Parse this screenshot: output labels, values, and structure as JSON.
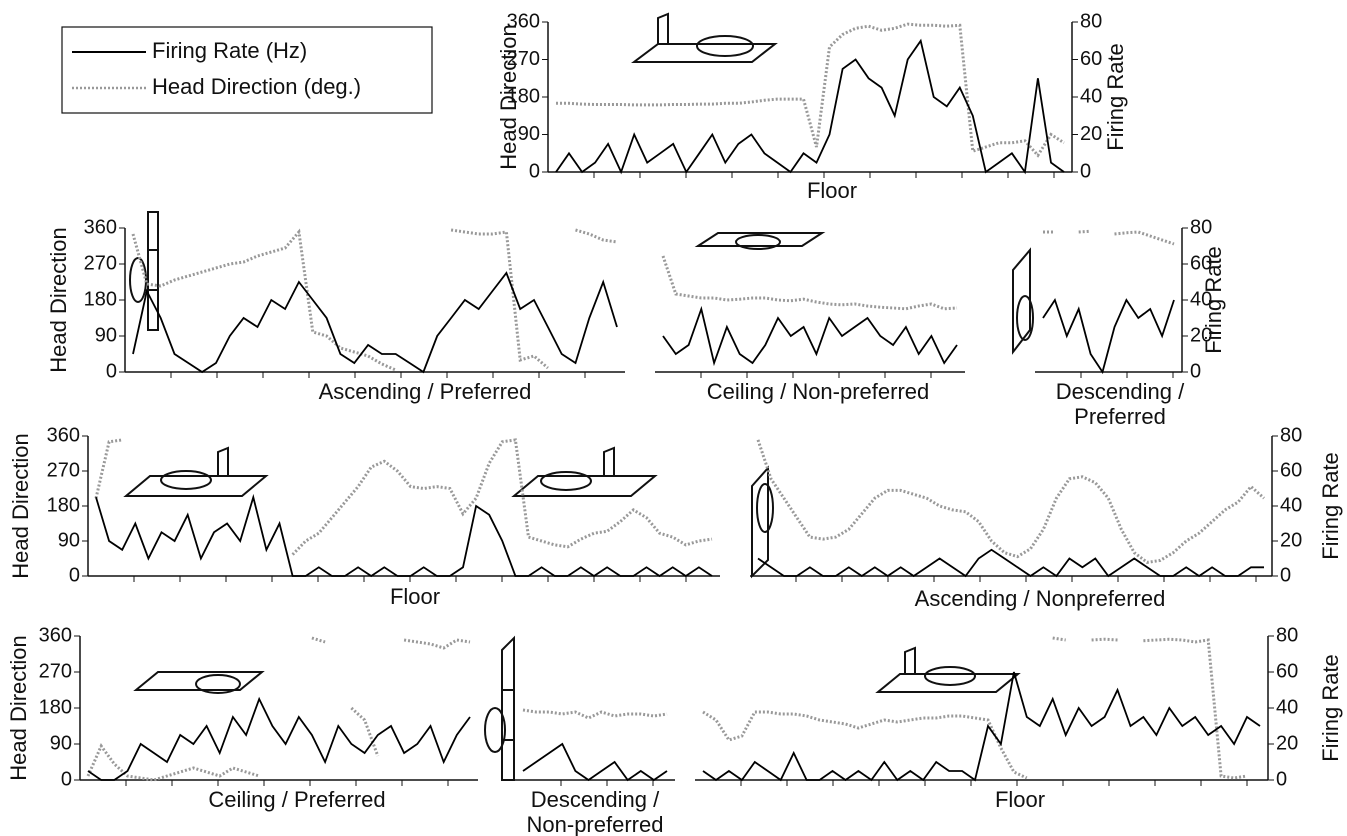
{
  "chart_data": [
    {
      "type": "line",
      "xlabel": "Floor",
      "ylabel": "Head Direction",
      "y2label": "Firing Rate",
      "ylim": [
        0,
        360
      ],
      "yticks": [
        0,
        90,
        180,
        270,
        360
      ],
      "y2lim": [
        0,
        80
      ],
      "y2ticks": [
        0,
        20,
        40,
        60,
        80
      ],
      "series": [
        {
          "name": "Firing Rate (Hz)",
          "color": "#000000",
          "axis": "y2",
          "values": [
            0,
            10,
            0,
            5,
            15,
            0,
            20,
            5,
            10,
            15,
            0,
            10,
            20,
            5,
            15,
            20,
            10,
            5,
            0,
            10,
            5,
            20,
            55,
            60,
            50,
            45,
            30,
            60,
            70,
            40,
            35,
            45,
            30,
            0,
            5,
            10,
            0,
            50,
            5,
            0
          ]
        },
        {
          "name": "Head Direction (deg.)",
          "color": "#999999",
          "values": [
            165,
            165,
            163,
            162,
            162,
            162,
            161,
            161,
            161,
            162,
            162,
            163,
            163,
            165,
            165,
            168,
            172,
            175,
            175,
            175,
            60,
            300,
            330,
            345,
            350,
            340,
            345,
            355,
            352,
            352,
            350,
            352,
            50,
            60,
            70,
            70,
            75,
            40,
            90,
            70
          ]
        }
      ]
    },
    {
      "type": "line",
      "xlabel": "Ascending / Preferred",
      "ylabel": "Head Direction",
      "ylim": [
        0,
        360
      ],
      "yticks": [
        0,
        90,
        180,
        270,
        360
      ],
      "y2lim": [
        0,
        80
      ],
      "series": [
        {
          "color": "#000000",
          "axis": "y2",
          "values": [
            10,
            45,
            30,
            10,
            5,
            0,
            5,
            20,
            30,
            25,
            40,
            35,
            50,
            40,
            30,
            10,
            5,
            15,
            10,
            10,
            5,
            0,
            20,
            30,
            40,
            35,
            45,
            55,
            35,
            40,
            25,
            10,
            5,
            30,
            50,
            25
          ]
        },
        {
          "color": "#999999",
          "values": [
            345,
            220,
            215,
            230,
            240,
            250,
            260,
            270,
            275,
            290,
            300,
            310,
            350,
            100,
            90,
            60,
            50,
            40,
            20,
            5,
            null,
            null,
            null,
            355,
            350,
            345,
            345,
            350,
            30,
            40,
            10,
            null,
            355,
            345,
            330,
            325
          ]
        }
      ]
    },
    {
      "type": "line",
      "xlabel": "Ceiling / Non-preferred",
      "ylim": [
        0,
        360
      ],
      "y2lim": [
        0,
        80
      ],
      "series": [
        {
          "color": "#000000",
          "axis": "y2",
          "values": [
            20,
            10,
            15,
            35,
            5,
            25,
            10,
            5,
            15,
            30,
            20,
            25,
            10,
            30,
            20,
            25,
            30,
            20,
            15,
            25,
            10,
            20,
            5,
            15
          ]
        },
        {
          "color": "#999999",
          "values": [
            290,
            195,
            190,
            185,
            185,
            180,
            182,
            185,
            185,
            180,
            178,
            182,
            175,
            170,
            168,
            170,
            165,
            162,
            160,
            158,
            165,
            170,
            158,
            160
          ]
        }
      ]
    },
    {
      "type": "line",
      "xlabel": [
        "Descending /",
        "Preferred"
      ],
      "y2label": "Firing Rate",
      "ylim": [
        0,
        360
      ],
      "y2lim": [
        0,
        80
      ],
      "y2ticks": [
        0,
        20,
        40,
        60,
        80
      ],
      "series": [
        {
          "color": "#000000",
          "axis": "y2",
          "values": [
            30,
            40,
            20,
            35,
            10,
            0,
            25,
            40,
            30,
            35,
            20,
            40
          ]
        },
        {
          "color": "#999999",
          "values": [
            350,
            350,
            null,
            350,
            352,
            null,
            345,
            348,
            350,
            340,
            330,
            320
          ]
        }
      ]
    },
    {
      "type": "line",
      "xlabel": "Floor",
      "ylabel": "Head Direction",
      "ylim": [
        0,
        360
      ],
      "yticks": [
        0,
        90,
        180,
        270,
        360
      ],
      "y2lim": [
        0,
        80
      ],
      "series": [
        {
          "color": "#000000",
          "axis": "y2",
          "values": [
            45,
            20,
            15,
            30,
            10,
            25,
            20,
            35,
            10,
            25,
            30,
            20,
            45,
            15,
            30,
            0,
            0,
            5,
            0,
            0,
            5,
            0,
            5,
            0,
            0,
            5,
            0,
            0,
            5,
            40,
            35,
            20,
            0,
            0,
            5,
            0,
            0,
            5,
            0,
            5,
            0,
            0,
            5,
            0,
            5,
            0,
            5,
            0
          ]
        },
        {
          "color": "#999999",
          "values": [
            200,
            345,
            350,
            null,
            null,
            350,
            null,
            355,
            null,
            350,
            null,
            null,
            340,
            null,
            null,
            55,
            90,
            110,
            150,
            190,
            230,
            280,
            295,
            270,
            230,
            225,
            230,
            225,
            160,
            200,
            290,
            345,
            350,
            100,
            90,
            80,
            75,
            95,
            110,
            115,
            140,
            170,
            150,
            110,
            100,
            80,
            90,
            95
          ]
        }
      ]
    },
    {
      "type": "line",
      "xlabel": "Ascending / Nonpreferred",
      "y2label": "Firing Rate",
      "ylim": [
        0,
        360
      ],
      "y2lim": [
        0,
        80
      ],
      "y2ticks": [
        0,
        20,
        40,
        60,
        80
      ],
      "series": [
        {
          "color": "#000000",
          "axis": "y2",
          "values": [
            10,
            5,
            0,
            0,
            5,
            0,
            0,
            5,
            0,
            5,
            0,
            5,
            0,
            5,
            10,
            5,
            0,
            10,
            15,
            10,
            5,
            0,
            5,
            0,
            10,
            5,
            10,
            0,
            5,
            10,
            5,
            0,
            0,
            5,
            0,
            5,
            0,
            0,
            5,
            5
          ]
        },
        {
          "color": "#999999",
          "values": [
            350,
            250,
            200,
            150,
            100,
            95,
            100,
            120,
            160,
            200,
            220,
            220,
            210,
            200,
            180,
            170,
            165,
            140,
            90,
            60,
            50,
            70,
            120,
            200,
            250,
            255,
            240,
            200,
            120,
            60,
            35,
            40,
            60,
            90,
            110,
            140,
            170,
            190,
            230,
            200
          ]
        }
      ]
    },
    {
      "type": "line",
      "xlabel": "Ceiling / Preferred",
      "ylabel": "Head Direction",
      "ylim": [
        0,
        360
      ],
      "yticks": [
        0,
        90,
        180,
        270,
        360
      ],
      "y2lim": [
        0,
        80
      ],
      "series": [
        {
          "color": "#000000",
          "axis": "y2",
          "values": [
            5,
            0,
            0,
            5,
            20,
            15,
            10,
            25,
            20,
            30,
            15,
            35,
            25,
            45,
            30,
            20,
            35,
            25,
            10,
            30,
            20,
            15,
            25,
            30,
            15,
            20,
            30,
            10,
            25,
            35
          ]
        },
        {
          "color": "#999999",
          "values": [
            10,
            85,
            40,
            10,
            5,
            0,
            10,
            20,
            30,
            20,
            10,
            30,
            20,
            10,
            null,
            null,
            null,
            355,
            345,
            null,
            180,
            150,
            60,
            null,
            350,
            345,
            340,
            330,
            350,
            345
          ]
        }
      ]
    },
    {
      "type": "line",
      "xlabel": [
        "Descending /",
        "Non-preferred"
      ],
      "ylim": [
        0,
        360
      ],
      "y2lim": [
        0,
        80
      ],
      "series": [
        {
          "color": "#000000",
          "axis": "y2",
          "values": [
            5,
            10,
            15,
            20,
            5,
            0,
            5,
            10,
            0,
            5,
            0,
            5
          ]
        },
        {
          "color": "#999999",
          "values": [
            175,
            170,
            170,
            165,
            170,
            155,
            170,
            160,
            165,
            165,
            160,
            165
          ]
        }
      ]
    },
    {
      "type": "line",
      "xlabel": "Floor",
      "y2label": "Firing Rate",
      "ylim": [
        0,
        360
      ],
      "y2lim": [
        0,
        80
      ],
      "y2ticks": [
        0,
        20,
        40,
        60,
        80
      ],
      "series": [
        {
          "color": "#000000",
          "axis": "y2",
          "values": [
            5,
            0,
            5,
            0,
            10,
            5,
            0,
            15,
            0,
            0,
            5,
            0,
            5,
            0,
            10,
            0,
            5,
            0,
            10,
            5,
            5,
            0,
            30,
            20,
            60,
            35,
            30,
            45,
            25,
            40,
            30,
            35,
            50,
            30,
            35,
            25,
            40,
            30,
            35,
            25,
            30,
            20,
            35,
            30
          ]
        },
        {
          "color": "#999999",
          "values": [
            170,
            150,
            100,
            110,
            170,
            170,
            165,
            165,
            160,
            150,
            145,
            140,
            130,
            140,
            150,
            145,
            150,
            155,
            155,
            160,
            160,
            155,
            150,
            80,
            20,
            5,
            null,
            355,
            350,
            null,
            350,
            352,
            350,
            null,
            348,
            350,
            352,
            350,
            345,
            350,
            10,
            5,
            10,
            null
          ]
        }
      ]
    }
  ]
}
